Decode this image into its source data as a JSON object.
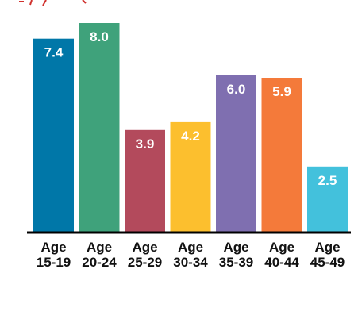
{
  "chart_data": {
    "type": "bar",
    "categories": [
      "Age 15-19",
      "Age 20-24",
      "Age 25-29",
      "Age 30-34",
      "Age 35-39",
      "Age 40-44",
      "Age 45-49"
    ],
    "category_lines": [
      [
        "Age",
        "15-19"
      ],
      [
        "Age",
        "20-24"
      ],
      [
        "Age",
        "25-29"
      ],
      [
        "Age",
        "30-34"
      ],
      [
        "Age",
        "35-39"
      ],
      [
        "Age",
        "40-44"
      ],
      [
        "Age",
        "45-49"
      ]
    ],
    "values": [
      7.4,
      8.0,
      3.9,
      4.2,
      6.0,
      5.9,
      2.5
    ],
    "value_labels": [
      "7.4",
      "8.0",
      "3.9",
      "4.2",
      "6.0",
      "5.9",
      "2.5"
    ],
    "colors": [
      "#0077a8",
      "#3fa27b",
      "#b34a5c",
      "#fcbf2e",
      "#7f6fb0",
      "#f47a3a",
      "#43c1dc"
    ],
    "ylim": [
      0,
      8.0
    ],
    "grid": false,
    "title": "",
    "xlabel": "",
    "ylabel": ""
  },
  "header": {
    "fragment_color": "#d0312d"
  }
}
